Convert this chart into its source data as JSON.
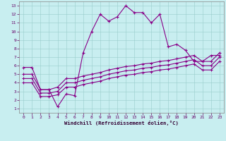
{
  "xlabel": "Windchill (Refroidissement éolien,°C)",
  "background_color": "#c8eef0",
  "line_color": "#880088",
  "xlim": [
    -0.5,
    23.5
  ],
  "ylim": [
    0.5,
    13.5
  ],
  "xticks": [
    0,
    1,
    2,
    3,
    4,
    5,
    6,
    7,
    8,
    9,
    10,
    11,
    12,
    13,
    14,
    15,
    16,
    17,
    18,
    19,
    20,
    21,
    22,
    23
  ],
  "yticks": [
    1,
    2,
    3,
    4,
    5,
    6,
    7,
    8,
    9,
    10,
    11,
    12,
    13
  ],
  "line1_x": [
    0,
    1,
    2,
    3,
    4,
    5,
    6,
    7,
    8,
    9,
    10,
    11,
    12,
    13,
    14,
    15,
    16,
    17,
    18,
    19,
    20,
    21,
    22,
    23
  ],
  "line1_y": [
    5.8,
    5.8,
    3.2,
    3.2,
    1.2,
    2.7,
    2.5,
    7.5,
    10.0,
    12.0,
    11.2,
    11.7,
    13.0,
    12.2,
    12.2,
    11.0,
    12.0,
    8.2,
    8.5,
    7.8,
    6.5,
    6.5,
    7.2,
    7.2
  ],
  "line2_x": [
    0,
    1,
    2,
    3,
    4,
    5,
    6,
    7,
    8,
    9,
    10,
    11,
    12,
    13,
    14,
    15,
    16,
    17,
    18,
    19,
    20,
    21,
    22,
    23
  ],
  "line2_y": [
    5.0,
    5.0,
    3.2,
    3.2,
    3.5,
    4.5,
    4.5,
    4.8,
    5.0,
    5.2,
    5.5,
    5.7,
    5.9,
    6.0,
    6.2,
    6.3,
    6.5,
    6.6,
    6.8,
    7.0,
    7.2,
    6.5,
    6.5,
    7.5
  ],
  "line3_x": [
    0,
    1,
    2,
    3,
    4,
    5,
    6,
    7,
    8,
    9,
    10,
    11,
    12,
    13,
    14,
    15,
    16,
    17,
    18,
    19,
    20,
    21,
    22,
    23
  ],
  "line3_y": [
    4.5,
    4.5,
    2.8,
    2.8,
    3.0,
    4.0,
    4.0,
    4.3,
    4.5,
    4.7,
    5.0,
    5.2,
    5.4,
    5.5,
    5.7,
    5.8,
    6.0,
    6.1,
    6.3,
    6.5,
    6.7,
    6.0,
    6.0,
    7.0
  ],
  "line4_x": [
    0,
    1,
    2,
    3,
    4,
    5,
    6,
    7,
    8,
    9,
    10,
    11,
    12,
    13,
    14,
    15,
    16,
    17,
    18,
    19,
    20,
    21,
    22,
    23
  ],
  "line4_y": [
    4.0,
    4.0,
    2.4,
    2.4,
    2.6,
    3.5,
    3.5,
    3.8,
    4.0,
    4.2,
    4.5,
    4.7,
    4.9,
    5.0,
    5.2,
    5.3,
    5.5,
    5.6,
    5.8,
    6.0,
    6.2,
    5.5,
    5.5,
    6.5
  ],
  "marker": "+"
}
